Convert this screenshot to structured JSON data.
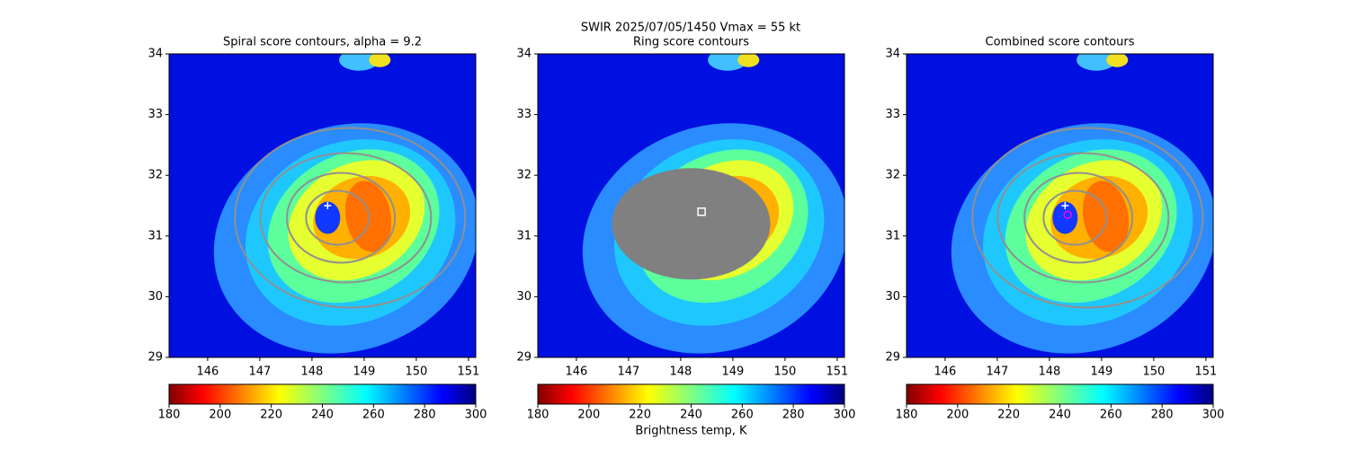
{
  "title": "SWIR  2025/07/05/1450    Vmax = 55 kt",
  "chart_data": [
    {
      "type": "image",
      "title": "Spiral score contours, alpha =  9.2",
      "contours": true,
      "xlim": [
        145.26,
        151.14
      ],
      "ylim": [
        29,
        34
      ],
      "xticks": [
        146,
        147,
        148,
        149,
        150,
        151
      ],
      "yticks": [
        29,
        30,
        31,
        32,
        33,
        34
      ],
      "points": [
        {
          "x": 148.3,
          "y": 31.5,
          "marker": "+",
          "color": "#ffffff"
        }
      ],
      "colorbar": {
        "colormap": "jet_r",
        "clim": [
          180,
          300
        ],
        "cticks": [
          180,
          200,
          220,
          240,
          260,
          280,
          300
        ]
      }
    },
    {
      "type": "image",
      "title": "Ring score contours",
      "contours": false,
      "xlim": [
        145.26,
        151.14
      ],
      "ylim": [
        29,
        34
      ],
      "xticks": [
        146,
        147,
        148,
        149,
        150,
        151
      ],
      "yticks": [
        29,
        30,
        31,
        32,
        33,
        34
      ],
      "points": [
        {
          "x": 148.4,
          "y": 31.4,
          "marker": "s",
          "color": "#ffffff"
        }
      ],
      "colorbar": {
        "colormap": "jet_r",
        "clim": [
          180,
          300
        ],
        "cticks": [
          180,
          200,
          220,
          240,
          260,
          280,
          300
        ],
        "label": "Brightness temp, K"
      }
    },
    {
      "type": "image",
      "title": "Combined score contours",
      "contours": true,
      "xlim": [
        145.26,
        151.14
      ],
      "ylim": [
        29,
        34
      ],
      "xticks": [
        146,
        147,
        148,
        149,
        150,
        151
      ],
      "yticks": [
        29,
        30,
        31,
        32,
        33,
        34
      ],
      "points": [
        {
          "x": 148.3,
          "y": 31.5,
          "marker": "+",
          "color": "#ffffff"
        },
        {
          "x": 148.35,
          "y": 31.35,
          "marker": "o",
          "color": "#ff00ff"
        }
      ],
      "colorbar": {
        "colormap": "jet_r",
        "clim": [
          180,
          300
        ],
        "cticks": [
          180,
          200,
          220,
          240,
          260,
          280,
          300
        ]
      }
    }
  ]
}
